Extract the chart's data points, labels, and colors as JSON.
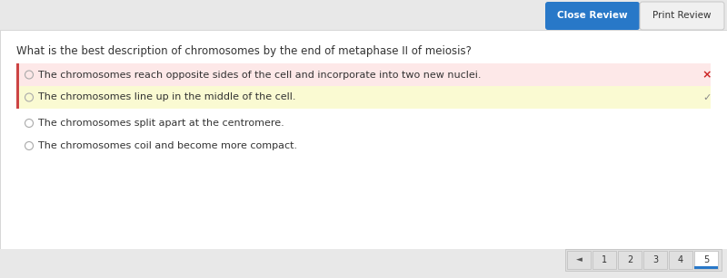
{
  "bg_color": "#e8e8e8",
  "main_bg": "#ffffff",
  "question": "What is the best description of chromosomes by the end of metaphase II of meiosis?",
  "question_fontsize": 8.5,
  "options": [
    {
      "text": "The chromosomes reach opposite sides of the cell and incorporate into two new nuclei.",
      "bg": "#fde8e8",
      "marker": "×",
      "marker_color": "#cc2222",
      "highlighted": true
    },
    {
      "text": "The chromosomes line up in the middle of the cell.",
      "bg": "#fafad2",
      "marker": "✓",
      "marker_color": "#888888",
      "highlighted": true
    },
    {
      "text": "The chromosomes split apart at the centromere.",
      "bg": "#ffffff",
      "marker": null,
      "marker_color": null,
      "highlighted": false
    },
    {
      "text": "The chromosomes coil and become more compact.",
      "bg": "#ffffff",
      "marker": null,
      "marker_color": null,
      "highlighted": false
    }
  ],
  "btn_close_text": "Close Review",
  "btn_close_bg": "#2878c8",
  "btn_close_fg": "#ffffff",
  "btn_print_text": "Print Review",
  "btn_print_bg": "#f0f0f0",
  "btn_print_fg": "#333333",
  "btn_print_border": "#cccccc",
  "nav_pages": [
    "1",
    "2",
    "3",
    "4",
    "5"
  ],
  "nav_current": 4,
  "nav_bg": "#e0e0e0",
  "nav_active_underline": "#2878c8",
  "radio_color": "#aaaaaa",
  "text_color": "#333333",
  "option_text_fontsize": 8.0,
  "left_border_color": "#cc4444",
  "top_bar_bg": "#e8e8e8",
  "shadow_color": "#cccccc"
}
